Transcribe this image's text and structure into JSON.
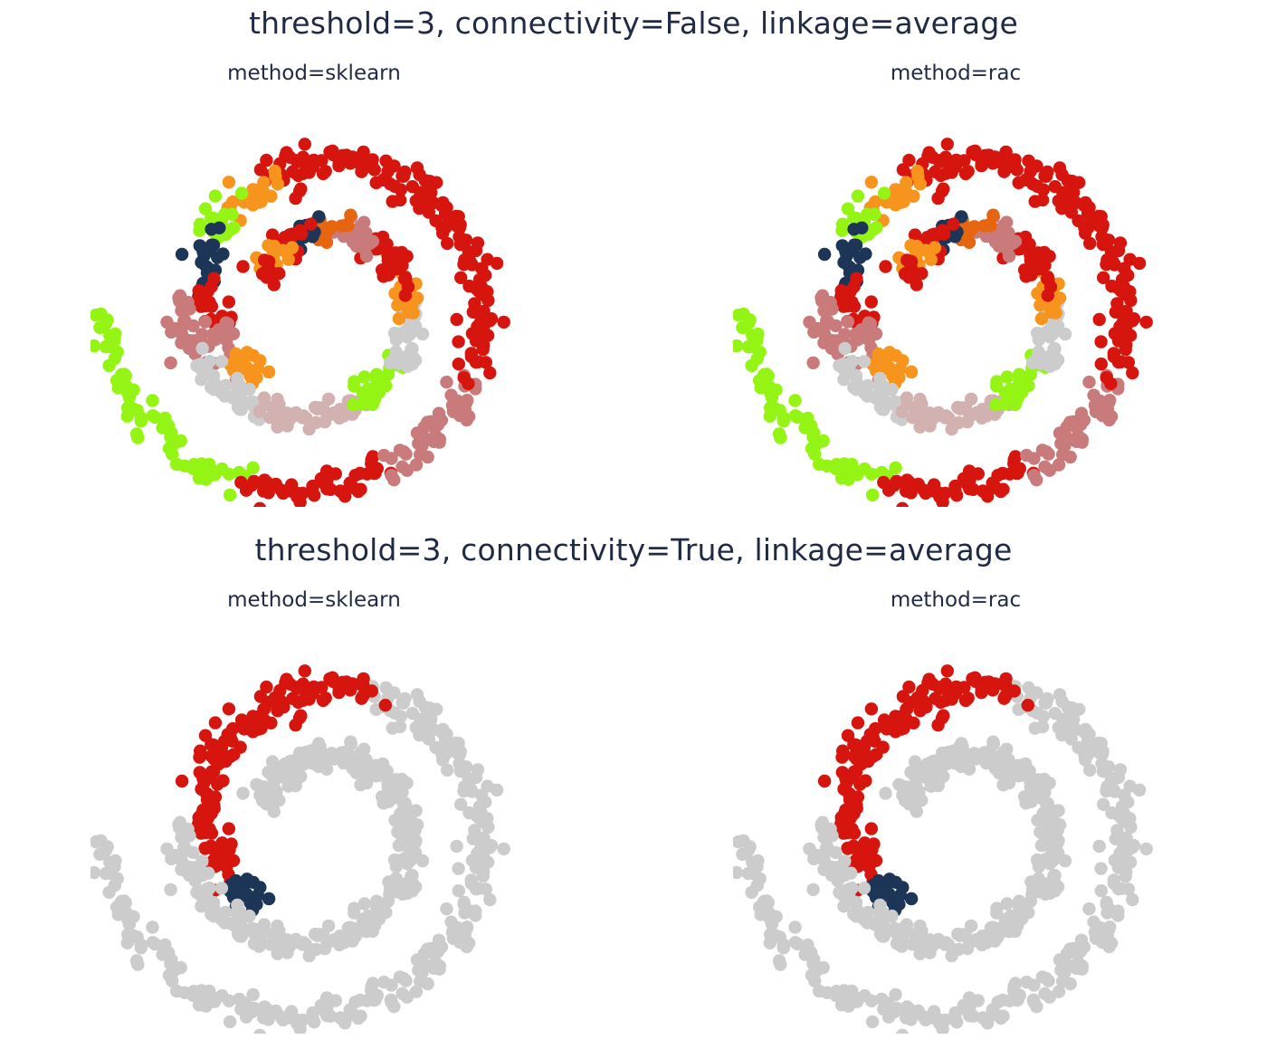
{
  "rows": [
    {
      "title": "threshold=3, connectivity=False, linkage=average"
    },
    {
      "title": "threshold=3, connectivity=True, linkage=average"
    }
  ],
  "panels": [
    {
      "title": "method=sklearn"
    },
    {
      "title": "method=rac"
    },
    {
      "title": "method=sklearn"
    },
    {
      "title": "method=rac"
    }
  ],
  "colors": {
    "red": "#d7150f",
    "pink": "#c97b7b",
    "navy": "#1d3557",
    "lime": "#94f514",
    "orange": "#f7941d",
    "darkorange": "#e6650f",
    "lightgray": "#cccccc",
    "rosegray": "#d2b1b1"
  },
  "chart_data": [
    {
      "type": "scatter",
      "title": "method=sklearn",
      "dataset": "two interleaved spirals",
      "grid": false,
      "axes_visible": false,
      "legend": "none",
      "clusters": {
        "outer": [
          {
            "from": 0.0,
            "to": 0.16,
            "color": "lime"
          },
          {
            "from": 0.16,
            "to": 0.27,
            "color": "red"
          },
          {
            "from": 0.27,
            "to": 0.37,
            "color": "pink"
          },
          {
            "from": 0.37,
            "to": 0.71,
            "color": "red"
          },
          {
            "from": 0.71,
            "to": 0.76,
            "color": "orange"
          },
          {
            "from": 0.76,
            "to": 0.8,
            "color": "lime"
          },
          {
            "from": 0.8,
            "to": 0.86,
            "color": "navy"
          },
          {
            "from": 0.86,
            "to": 0.91,
            "color": "red"
          },
          {
            "from": 0.91,
            "to": 0.96,
            "color": "pink"
          },
          {
            "from": 0.96,
            "to": 1.0,
            "color": "orange"
          }
        ],
        "inner": [
          {
            "from": 0.0,
            "to": 0.08,
            "color": "pink"
          },
          {
            "from": 0.08,
            "to": 0.19,
            "color": "lightgray"
          },
          {
            "from": 0.19,
            "to": 0.34,
            "color": "rosegray"
          },
          {
            "from": 0.34,
            "to": 0.42,
            "color": "lime"
          },
          {
            "from": 0.42,
            "to": 0.52,
            "color": "lightgray"
          },
          {
            "from": 0.52,
            "to": 0.58,
            "color": "orange"
          },
          {
            "from": 0.58,
            "to": 0.68,
            "color": "red"
          },
          {
            "from": 0.68,
            "to": 0.75,
            "color": "pink"
          },
          {
            "from": 0.75,
            "to": 0.8,
            "color": "darkorange"
          },
          {
            "from": 0.8,
            "to": 0.84,
            "color": "navy"
          },
          {
            "from": 0.84,
            "to": 0.91,
            "color": "red"
          },
          {
            "from": 0.91,
            "to": 0.96,
            "color": "orange"
          },
          {
            "from": 0.96,
            "to": 1.0,
            "color": "red"
          }
        ]
      }
    },
    {
      "type": "scatter",
      "title": "method=rac",
      "dataset": "two interleaved spirals",
      "grid": false,
      "axes_visible": false,
      "legend": "none",
      "clusters": {
        "outer": [
          {
            "from": 0.0,
            "to": 0.16,
            "color": "lime"
          },
          {
            "from": 0.16,
            "to": 0.27,
            "color": "red"
          },
          {
            "from": 0.27,
            "to": 0.37,
            "color": "pink"
          },
          {
            "from": 0.37,
            "to": 0.71,
            "color": "red"
          },
          {
            "from": 0.71,
            "to": 0.76,
            "color": "orange"
          },
          {
            "from": 0.76,
            "to": 0.8,
            "color": "lime"
          },
          {
            "from": 0.8,
            "to": 0.86,
            "color": "navy"
          },
          {
            "from": 0.86,
            "to": 0.91,
            "color": "red"
          },
          {
            "from": 0.91,
            "to": 0.96,
            "color": "pink"
          },
          {
            "from": 0.96,
            "to": 1.0,
            "color": "orange"
          }
        ],
        "inner": [
          {
            "from": 0.0,
            "to": 0.08,
            "color": "pink"
          },
          {
            "from": 0.08,
            "to": 0.19,
            "color": "lightgray"
          },
          {
            "from": 0.19,
            "to": 0.34,
            "color": "rosegray"
          },
          {
            "from": 0.34,
            "to": 0.42,
            "color": "lime"
          },
          {
            "from": 0.42,
            "to": 0.52,
            "color": "lightgray"
          },
          {
            "from": 0.52,
            "to": 0.58,
            "color": "orange"
          },
          {
            "from": 0.58,
            "to": 0.68,
            "color": "red"
          },
          {
            "from": 0.68,
            "to": 0.75,
            "color": "pink"
          },
          {
            "from": 0.75,
            "to": 0.8,
            "color": "darkorange"
          },
          {
            "from": 0.8,
            "to": 0.84,
            "color": "navy"
          },
          {
            "from": 0.84,
            "to": 0.91,
            "color": "red"
          },
          {
            "from": 0.91,
            "to": 0.96,
            "color": "orange"
          },
          {
            "from": 0.96,
            "to": 1.0,
            "color": "red"
          }
        ]
      }
    },
    {
      "type": "scatter",
      "title": "method=sklearn",
      "dataset": "two interleaved spirals",
      "grid": false,
      "axes_visible": false,
      "legend": "none",
      "clusters": {
        "outer": [
          {
            "from": 0.0,
            "to": 0.6,
            "color": "lightgray"
          },
          {
            "from": 0.6,
            "to": 0.955,
            "color": "red"
          },
          {
            "from": 0.955,
            "to": 1.0,
            "color": "navy"
          }
        ],
        "inner": [
          {
            "from": 0.0,
            "to": 1.0,
            "color": "lightgray"
          }
        ]
      }
    },
    {
      "type": "scatter",
      "title": "method=rac",
      "dataset": "two interleaved spirals",
      "grid": false,
      "axes_visible": false,
      "legend": "none",
      "clusters": {
        "outer": [
          {
            "from": 0.0,
            "to": 0.6,
            "color": "lightgray"
          },
          {
            "from": 0.6,
            "to": 0.955,
            "color": "red"
          },
          {
            "from": 0.955,
            "to": 1.0,
            "color": "navy"
          }
        ],
        "inner": [
          {
            "from": 0.0,
            "to": 1.0,
            "color": "lightgray"
          }
        ]
      }
    }
  ]
}
